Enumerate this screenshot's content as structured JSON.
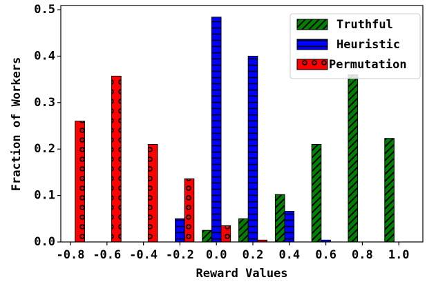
{
  "chart_data": {
    "type": "bar",
    "x_label": "Reward Values",
    "y_label": "Fraction of Workers",
    "categories": [
      "-0.8",
      "-0.6",
      "-0.4",
      "-0.2",
      "0.0",
      "0.2",
      "0.4",
      "0.6",
      "0.8",
      "1.0"
    ],
    "series": [
      {
        "name": "Truthful",
        "color": "#008000",
        "hatch": "//",
        "values": [
          0,
          0,
          0,
          0,
          0.025,
          0.05,
          0.102,
          0.21,
          0.36,
          0.223
        ]
      },
      {
        "name": "Heuristic",
        "color": "#0000ff",
        "hatch": "-",
        "values": [
          0,
          0,
          0,
          0.05,
          0.484,
          0.4,
          0.066,
          0.004,
          0,
          0
        ]
      },
      {
        "name": "Permutation",
        "color": "#ff0000",
        "hatch": "o",
        "values": [
          0.26,
          0.357,
          0.21,
          0.136,
          0.035,
          0.004,
          0,
          0,
          0,
          0
        ]
      }
    ],
    "ylim": [
      0,
      0.509
    ],
    "yticks": [
      {
        "value": 0,
        "label": "0.0"
      },
      0.1,
      0.2,
      0.3,
      0.4,
      0.5
    ],
    "legend": "upper right"
  }
}
